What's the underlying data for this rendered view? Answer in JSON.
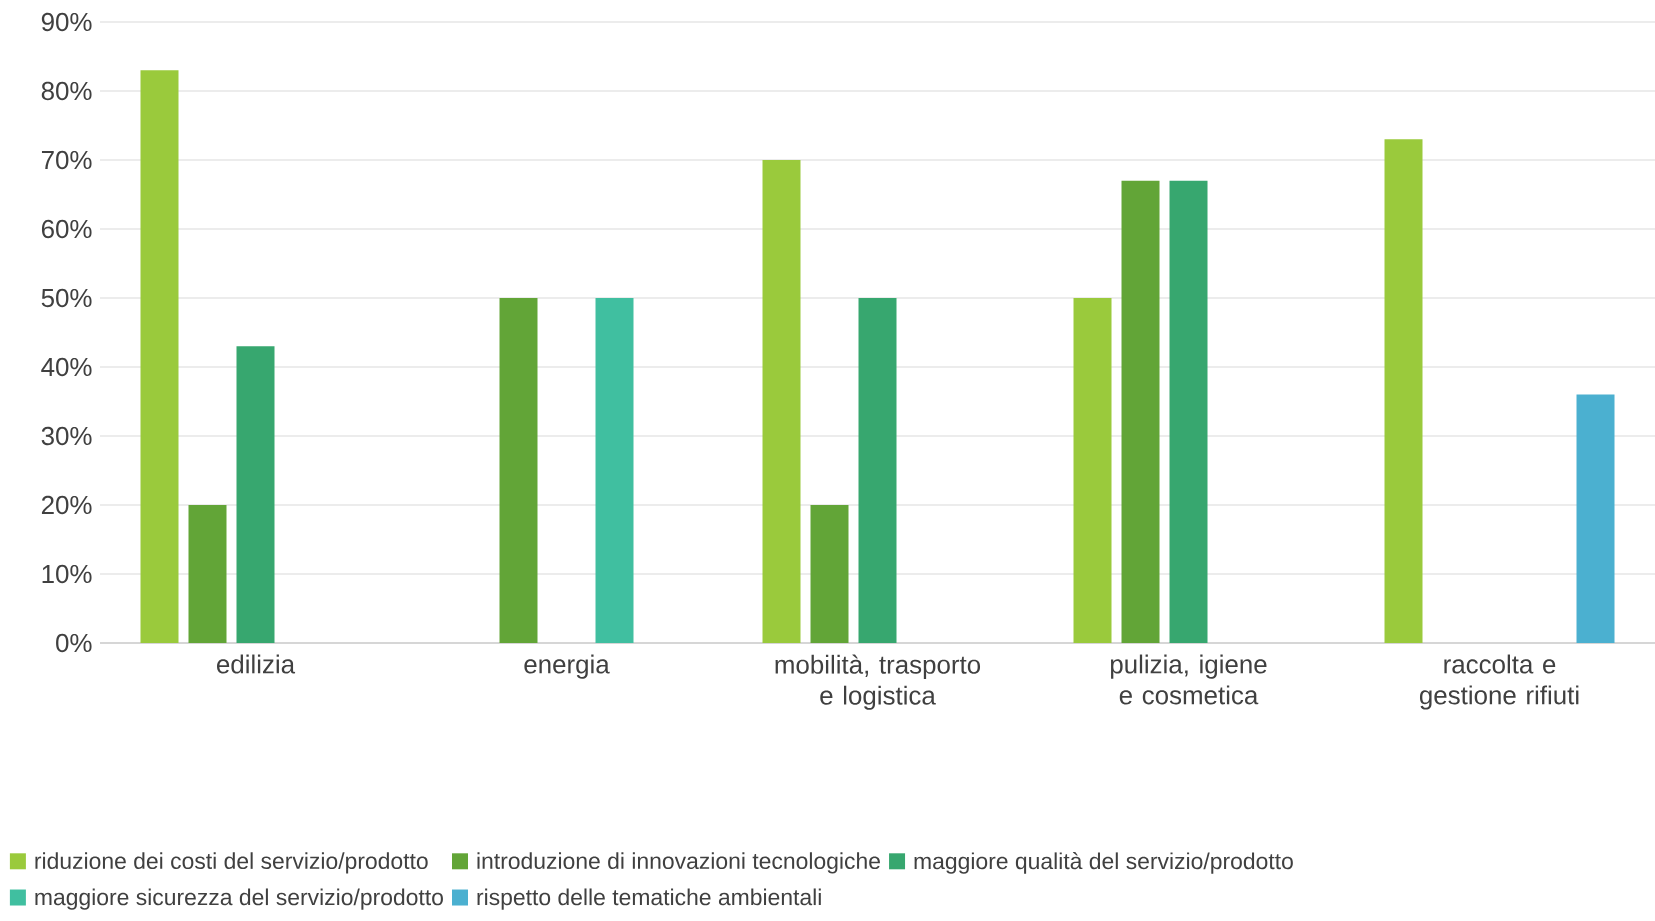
{
  "chart_data": {
    "type": "bar",
    "categories": [
      "edilizia",
      "energia",
      "mobilità, trasporto e logistica",
      "pulizia, igiene e cosmetica",
      "raccolta e gestione rifiuti"
    ],
    "series": [
      {
        "name": "riduzione dei costi del servizio/prodotto",
        "color": "#9ACA3C",
        "values": [
          83,
          null,
          70,
          50,
          73
        ]
      },
      {
        "name": "introduzione di innovazioni tecnologiche",
        "color": "#62A537",
        "values": [
          20,
          50,
          20,
          67,
          null
        ]
      },
      {
        "name": "maggiore qualità del servizio/prodotto",
        "color": "#37A76F",
        "values": [
          43,
          null,
          50,
          67,
          null
        ]
      },
      {
        "name": "maggiore sicurezza del servizio/prodotto",
        "color": "#40BFA0",
        "values": [
          null,
          50,
          null,
          null,
          null
        ]
      },
      {
        "name": "rispetto delle tematiche ambientali",
        "color": "#4BB0D0",
        "values": [
          null,
          null,
          null,
          null,
          36
        ]
      }
    ],
    "ylim": [
      0,
      90
    ],
    "yticks": [
      {
        "value": 0,
        "label": "0%"
      },
      {
        "value": 10,
        "label": "10%"
      },
      {
        "value": 20,
        "label": "20%"
      },
      {
        "value": 30,
        "label": "30%"
      },
      {
        "value": 40,
        "label": "40%"
      },
      {
        "value": 50,
        "label": "50%"
      },
      {
        "value": 60,
        "label": "60%"
      },
      {
        "value": 70,
        "label": "70%"
      },
      {
        "value": 80,
        "label": "80%"
      },
      {
        "value": 90,
        "label": "90%"
      }
    ],
    "grid": "y",
    "legend": "bottom"
  }
}
